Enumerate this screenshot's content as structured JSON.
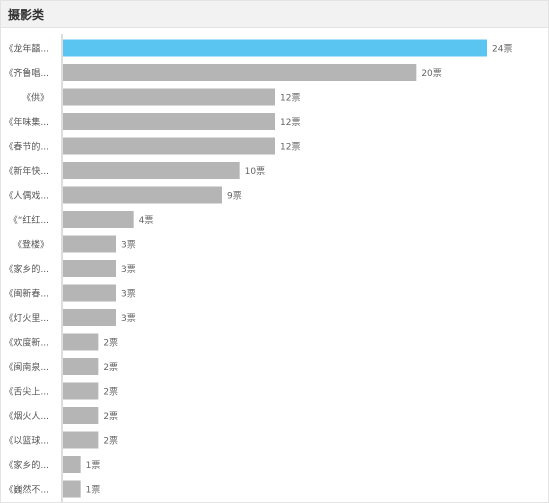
{
  "panel": {
    "title": "摄影类"
  },
  "colors": {
    "highlight": "#5bc5f2",
    "bar": "#b5b5b5",
    "axis": "#bbbbbb"
  },
  "chart_data": {
    "type": "bar",
    "orientation": "horizontal",
    "title": "",
    "xlabel": "",
    "ylabel": "",
    "xlim": [
      0,
      24
    ],
    "grid": false,
    "categories": [
      "《龙年囍...",
      "《齐鲁唱...",
      "《供》",
      "《年味集...",
      "《春节的...",
      "《新年快...",
      "《人偶戏...",
      "《“红红...",
      "《登楼》",
      "《家乡的...",
      "《闽新春...",
      "《灯火里...",
      "《欢度新...",
      "《闽南泉...",
      "《舌尖上...",
      "《烟火人...",
      "《以篮球...",
      "《家乡的...",
      "《巍然不..."
    ],
    "values": [
      24,
      20,
      12,
      12,
      12,
      10,
      9,
      4,
      3,
      3,
      3,
      3,
      2,
      2,
      2,
      2,
      2,
      1,
      1
    ],
    "value_labels": [
      "24票",
      "20票",
      "12票",
      "12票",
      "12票",
      "10票",
      "9票",
      "4票",
      "3票",
      "3票",
      "3票",
      "3票",
      "2票",
      "2票",
      "2票",
      "2票",
      "2票",
      "1票",
      "1票"
    ]
  }
}
